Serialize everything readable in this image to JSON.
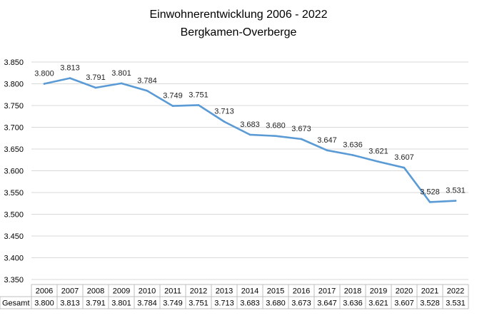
{
  "chart_data": {
    "type": "line",
    "title": "Einwohnerentwicklung 2006 - 2022",
    "subtitle": "Bergkamen-Overberge",
    "categories": [
      "2006",
      "2007",
      "2008",
      "2009",
      "2010",
      "2011",
      "2012",
      "2013",
      "2014",
      "2015",
      "2016",
      "2017",
      "2018",
      "2019",
      "2020",
      "2021",
      "2022"
    ],
    "series": [
      {
        "name": "Gesamt",
        "values": [
          3800,
          3813,
          3791,
          3801,
          3784,
          3749,
          3751,
          3713,
          3683,
          3680,
          3673,
          3647,
          3636,
          3621,
          3607,
          3528,
          3531
        ],
        "labels": [
          "3.800",
          "3.813",
          "3.791",
          "3.801",
          "3.784",
          "3.749",
          "3.751",
          "3.713",
          "3.683",
          "3.680",
          "3.673",
          "3.647",
          "3.636",
          "3.621",
          "3.607",
          "3.528",
          "3.531"
        ],
        "color": "#5b9bd5"
      }
    ],
    "ylim": [
      3350,
      3850
    ],
    "yticks": [
      3350,
      3400,
      3450,
      3500,
      3550,
      3600,
      3650,
      3700,
      3750,
      3800,
      3850
    ],
    "ytick_labels": [
      "3.350",
      "3.400",
      "3.450",
      "3.500",
      "3.550",
      "3.600",
      "3.650",
      "3.700",
      "3.750",
      "3.800",
      "3.850"
    ],
    "grid": true,
    "data_table": true
  }
}
